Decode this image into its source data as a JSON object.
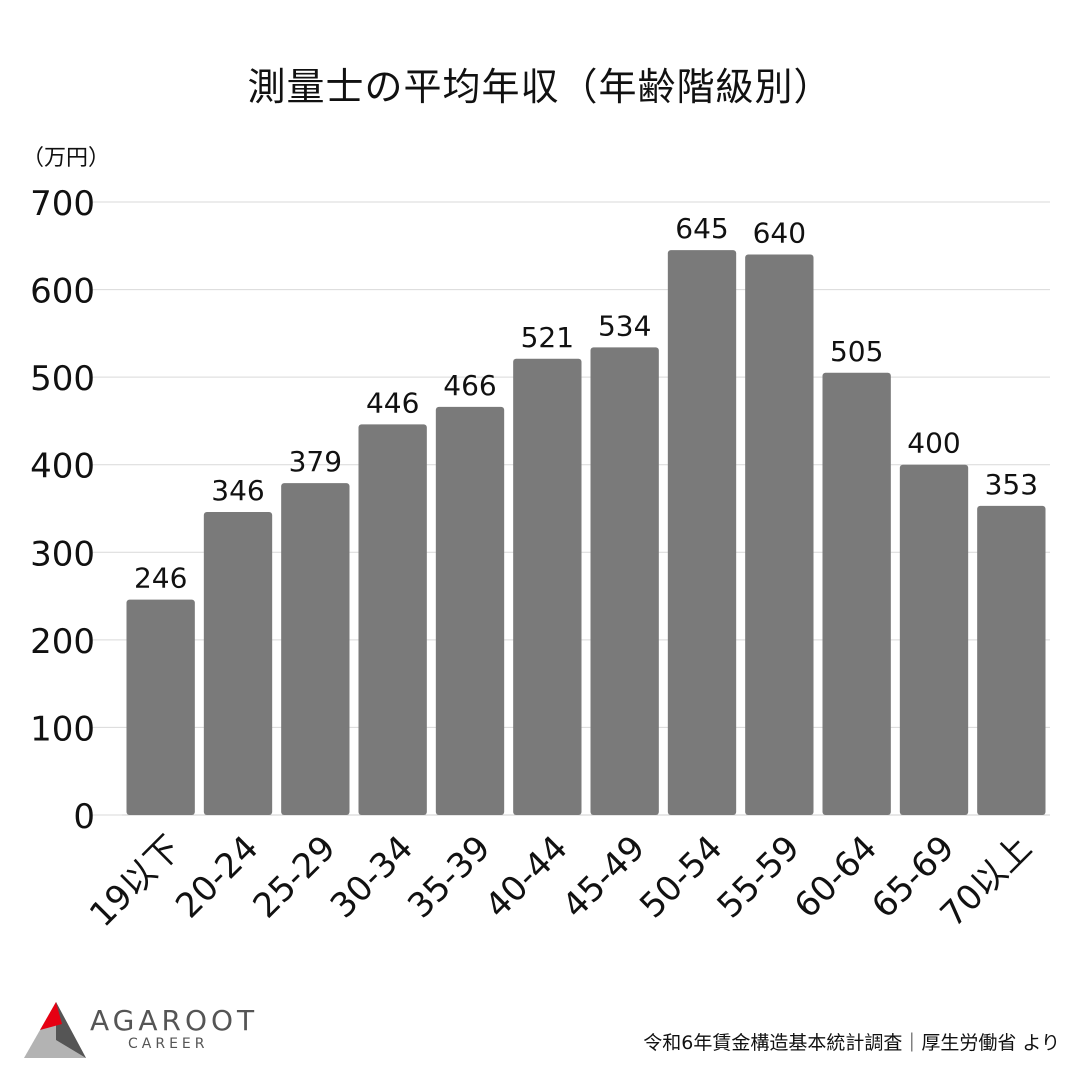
{
  "chart_data": {
    "type": "bar",
    "title": "測量士の平均年収（年齢階級別）",
    "ylabel": "（万円）",
    "categories": [
      "19以下",
      "20-24",
      "25-29",
      "30-34",
      "35-39",
      "40-44",
      "45-49",
      "50-54",
      "55-59",
      "60-64",
      "65-69",
      "70以上"
    ],
    "values": [
      246,
      346,
      379,
      446,
      466,
      521,
      534,
      645,
      640,
      505,
      400,
      353
    ],
    "ylim": [
      0,
      700
    ],
    "yticks": [
      0,
      100,
      200,
      300,
      400,
      500,
      600,
      700
    ],
    "grid": true,
    "bar_color": "#7a7a7a",
    "grid_color": "#d9d9d9"
  },
  "source_note": "令和6年賃金構造基本統計調査｜厚生労働省 より",
  "brand": {
    "name": "AGAROOT",
    "sub": "CAREER",
    "colors": {
      "red": "#e60012",
      "dark": "#555555",
      "light": "#b3b3b3"
    }
  }
}
